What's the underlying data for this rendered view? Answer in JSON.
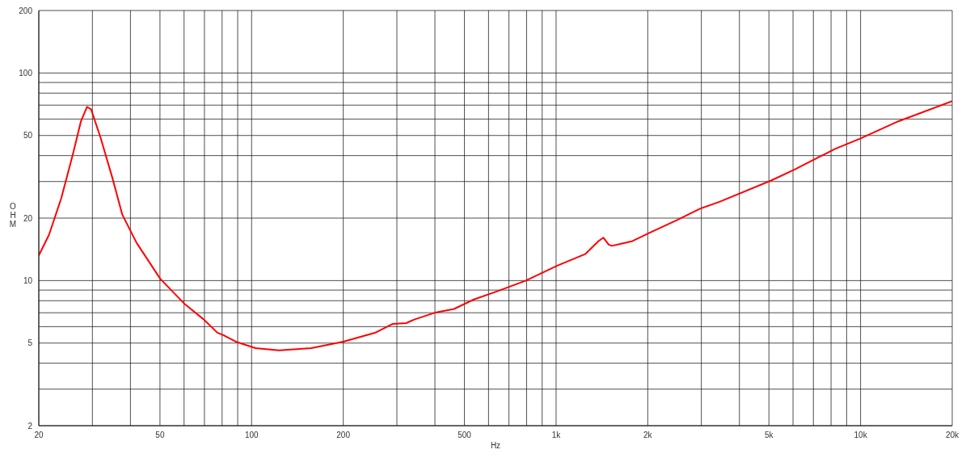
{
  "chart_data": {
    "type": "line",
    "xlabel": "Hz",
    "ylabel": "OHM",
    "x": [
      20,
      21.6,
      23.7,
      25.9,
      27.5,
      28.8,
      29.7,
      31.9,
      34.9,
      37.6,
      41.9,
      50.1,
      60,
      69.7,
      77.2,
      81,
      88.7,
      103,
      123,
      157,
      200,
      254,
      291,
      322,
      342,
      398,
      462,
      537,
      643,
      793,
      1009,
      1245,
      1378,
      1429,
      1489,
      1525,
      1782,
      2010,
      2481,
      2970,
      3452,
      5100,
      6109,
      8241,
      10000,
      13300,
      20000
    ],
    "series": [
      {
        "color": "#ff0000",
        "values": [
          13.2,
          16.6,
          24.9,
          40.8,
          58.5,
          68.7,
          66.8,
          48.9,
          31.2,
          20.8,
          15.2,
          10.2,
          7.76,
          6.49,
          5.61,
          5.45,
          5.08,
          4.73,
          4.61,
          4.73,
          5.08,
          5.6,
          6.19,
          6.24,
          6.49,
          6.99,
          7.3,
          8.11,
          8.9,
          9.98,
          11.8,
          13.4,
          15.5,
          16.1,
          14.9,
          14.7,
          15.5,
          16.9,
          19.5,
          22.2,
          24,
          30.4,
          34.4,
          43.1,
          48.4,
          58.5,
          73.2
        ]
      }
    ],
    "log": "xy",
    "xlim": [
      20,
      20000
    ],
    "ylim": [
      2,
      200
    ],
    "xticks": [
      20,
      {
        "value": 30,
        "label": null
      },
      {
        "value": 40,
        "label": null
      },
      50,
      {
        "value": 60,
        "label": null
      },
      {
        "value": 70,
        "label": null
      },
      {
        "value": 80,
        "label": null
      },
      {
        "value": 90,
        "label": null
      },
      100,
      200,
      {
        "value": 300,
        "label": null
      },
      {
        "value": 400,
        "label": null
      },
      500,
      {
        "value": 600,
        "label": null
      },
      {
        "value": 700,
        "label": null
      },
      {
        "value": 800,
        "label": null
      },
      {
        "value": 900,
        "label": null
      },
      {
        "value": 1000,
        "label": "1k"
      },
      {
        "value": 2000,
        "label": "2k"
      },
      {
        "value": 3000,
        "label": null
      },
      {
        "value": 4000,
        "label": null
      },
      {
        "value": 5000,
        "label": "5k"
      },
      {
        "value": 6000,
        "label": null
      },
      {
        "value": 7000,
        "label": null
      },
      {
        "value": 8000,
        "label": null
      },
      {
        "value": 9000,
        "label": null
      },
      {
        "value": 10000,
        "label": "10k"
      },
      {
        "value": 20000,
        "label": "20k"
      }
    ],
    "yticks": [
      2,
      {
        "value": 3,
        "label": null
      },
      {
        "value": 4,
        "label": null
      },
      5,
      {
        "value": 6,
        "label": null
      },
      {
        "value": 7,
        "label": null
      },
      {
        "value": 8,
        "label": null
      },
      {
        "value": 9,
        "label": null
      },
      10,
      20,
      {
        "value": 30,
        "label": null
      },
      {
        "value": 40,
        "label": null
      },
      50,
      {
        "value": 60,
        "label": null
      },
      {
        "value": 70,
        "label": null
      },
      {
        "value": 80,
        "label": null
      },
      {
        "value": 90,
        "label": null
      },
      100,
      200
    ],
    "grid": true,
    "legend": false,
    "marker": "none",
    "line_style": "solid"
  }
}
